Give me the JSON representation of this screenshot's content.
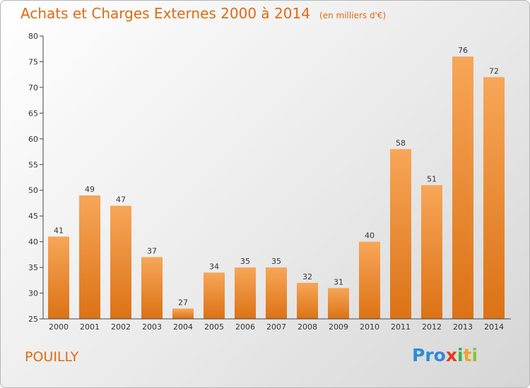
{
  "chart_data": {
    "type": "bar",
    "title": "Achats et Charges Externes 2000 à 2014",
    "subtitle": "(en milliers d'€)",
    "categories": [
      "2000",
      "2001",
      "2002",
      "2003",
      "2004",
      "2005",
      "2006",
      "2007",
      "2008",
      "2009",
      "2010",
      "2011",
      "2012",
      "2013",
      "2014"
    ],
    "values": [
      41,
      49,
      47,
      37,
      27,
      34,
      35,
      35,
      32,
      31,
      40,
      58,
      51,
      76,
      72
    ],
    "ylim": [
      25,
      80
    ],
    "yticks": [
      25,
      30,
      35,
      40,
      45,
      50,
      55,
      60,
      65,
      70,
      75,
      80
    ],
    "grid": false,
    "bar_color": "#f08a2a"
  },
  "place_name": "POUILLY",
  "logo": {
    "parts": [
      "Pro",
      "x",
      "i",
      "t",
      "i"
    ]
  }
}
